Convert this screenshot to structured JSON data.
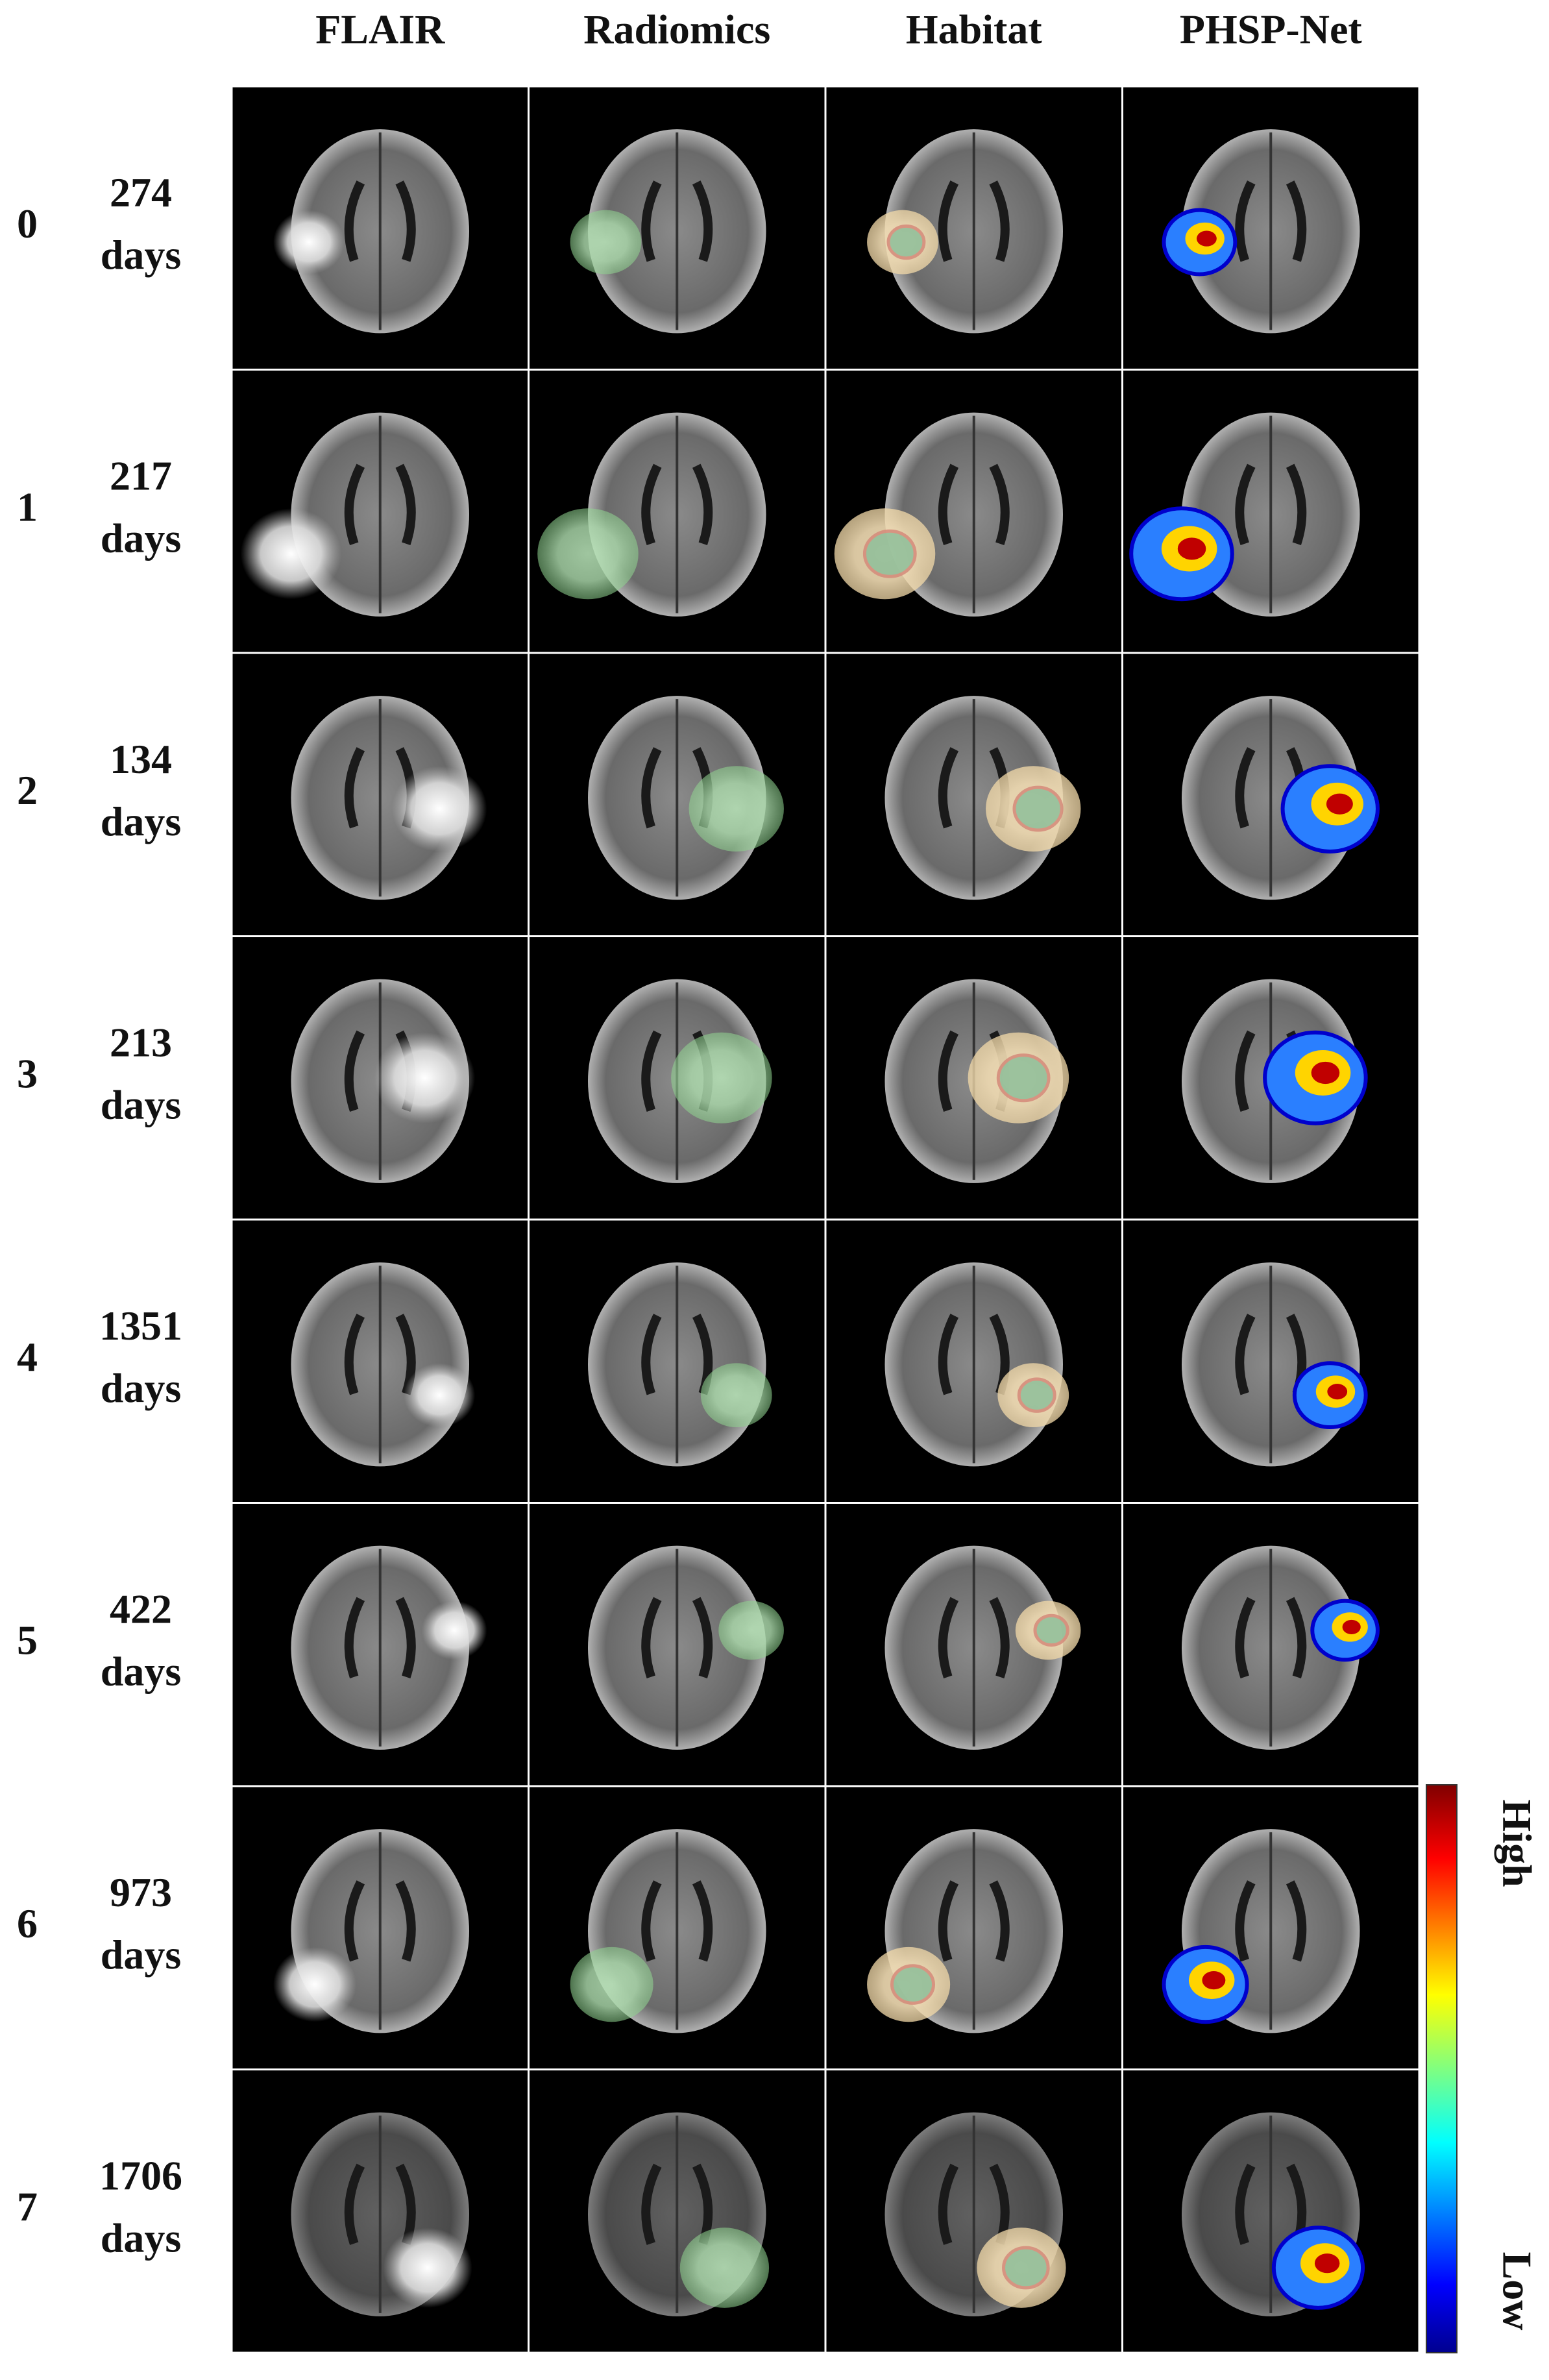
{
  "columns": [
    "FLAIR",
    "Radiomics",
    "Habitat",
    "PHSP-Net"
  ],
  "rows": [
    {
      "index": "0",
      "days": "274",
      "unit": "days"
    },
    {
      "index": "1",
      "days": "217",
      "unit": "days"
    },
    {
      "index": "2",
      "days": "134",
      "unit": "days"
    },
    {
      "index": "3",
      "days": "213",
      "unit": "days"
    },
    {
      "index": "4",
      "days": "1351",
      "unit": "days"
    },
    {
      "index": "5",
      "days": "422",
      "unit": "days"
    },
    {
      "index": "6",
      "days": "973",
      "unit": "days"
    },
    {
      "index": "7",
      "days": "1706",
      "unit": "days"
    }
  ],
  "colorbar": {
    "high": "High",
    "low": "Low"
  }
}
